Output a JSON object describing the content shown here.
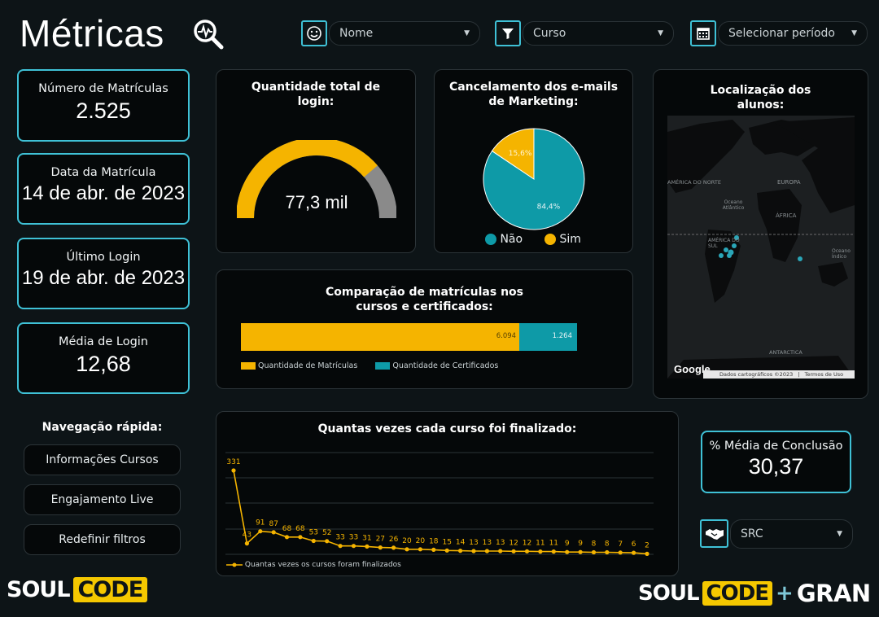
{
  "header": {
    "title": "Métricas",
    "filters": [
      {
        "icon": "smiley-icon",
        "label": "Nome"
      },
      {
        "icon": "filter-icon",
        "label": "Curso"
      },
      {
        "icon": "calendar-icon",
        "label": "Selecionar período"
      }
    ]
  },
  "kpis": [
    {
      "label": "Número de Matrículas",
      "value": "2.525"
    },
    {
      "label": "Data da Matrícula",
      "value": "14 de abr. de 2023"
    },
    {
      "label": "Último Login",
      "value": "19 de abr. de 2023"
    },
    {
      "label": "Média de Login",
      "value": "12,68"
    }
  ],
  "login_card": {
    "title_line1": "Quantidade total de",
    "title_line2": "login:",
    "value": "77,3 mil",
    "gauge_fraction": 0.773
  },
  "email_card": {
    "title_line1": "Cancelamento dos e-mails",
    "title_line2": "de Marketing:",
    "legend": [
      "Não",
      "Sim"
    ]
  },
  "map_card": {
    "title_line1": "Localização dos",
    "title_line2": "alunos:",
    "labels": {
      "north_america": "AMÉRICA DO NORTE",
      "europe": "EUROPA",
      "africa": "ÁFRICA",
      "south_america": "AMÉRICA DO SUL",
      "atlantic": "Oceano Atlântico",
      "indian": "Oceano Índico",
      "antarctica": "ANTARCTICA"
    },
    "google": "Google",
    "footer_data": "Dados cartográficos ©2023",
    "footer_terms": "Termos de Uso"
  },
  "compare_card": {
    "title_line1": "Comparação de matrículas nos",
    "title_line2": "cursos e certificados:"
  },
  "finalized_card": {
    "title": "Quantas vezes cada curso foi finalizado:"
  },
  "conclusion": {
    "label": "% Média de Conclusão",
    "value": "30,37"
  },
  "quick_nav": {
    "title": "Navegação rápida:",
    "buttons": [
      "Informações Cursos",
      "Engajamento Live",
      "Redefinir filtros"
    ]
  },
  "src_filter": {
    "icon": "handshake-icon",
    "label": "SRC"
  },
  "logos": {
    "left_a": "SOUL",
    "left_b": "CODE",
    "right_a": "SOUL",
    "right_b": "CODE",
    "plus": "+",
    "right_c": "GRAN"
  },
  "colors": {
    "accent": "#3fc1d6",
    "yellow": "#f5b400",
    "teal": "#0e9aa7",
    "gray": "#8a8a8a"
  },
  "chart_data": [
    {
      "type": "pie",
      "categories": [
        "Não",
        "Sim"
      ],
      "values": [
        84.4,
        15.6
      ],
      "labels": [
        "84,4%",
        "15,6%"
      ],
      "colors": [
        "#0e9aa7",
        "#f5b400"
      ],
      "legend_position": "bottom"
    },
    {
      "type": "bar",
      "orientation": "horizontal-stacked",
      "categories": [
        "Quantidade de Matrículas",
        "Quantidade de Certificados"
      ],
      "values": [
        6094,
        1264
      ],
      "labels": [
        "6.094",
        "1.264"
      ],
      "colors": [
        "#f5b400",
        "#0e9aa7"
      ],
      "legend_position": "bottom-left"
    },
    {
      "type": "line",
      "series": [
        {
          "name": "Quantas vezes os cursos foram finalizados",
          "values": [
            331,
            43,
            91,
            87,
            68,
            68,
            53,
            52,
            33,
            33,
            31,
            27,
            26,
            20,
            20,
            18,
            15,
            14,
            13,
            13,
            13,
            12,
            12,
            11,
            11,
            9,
            9,
            8,
            8,
            7,
            6,
            2
          ]
        }
      ],
      "color": "#f5b400",
      "legend_position": "bottom-left",
      "grid": true
    }
  ]
}
